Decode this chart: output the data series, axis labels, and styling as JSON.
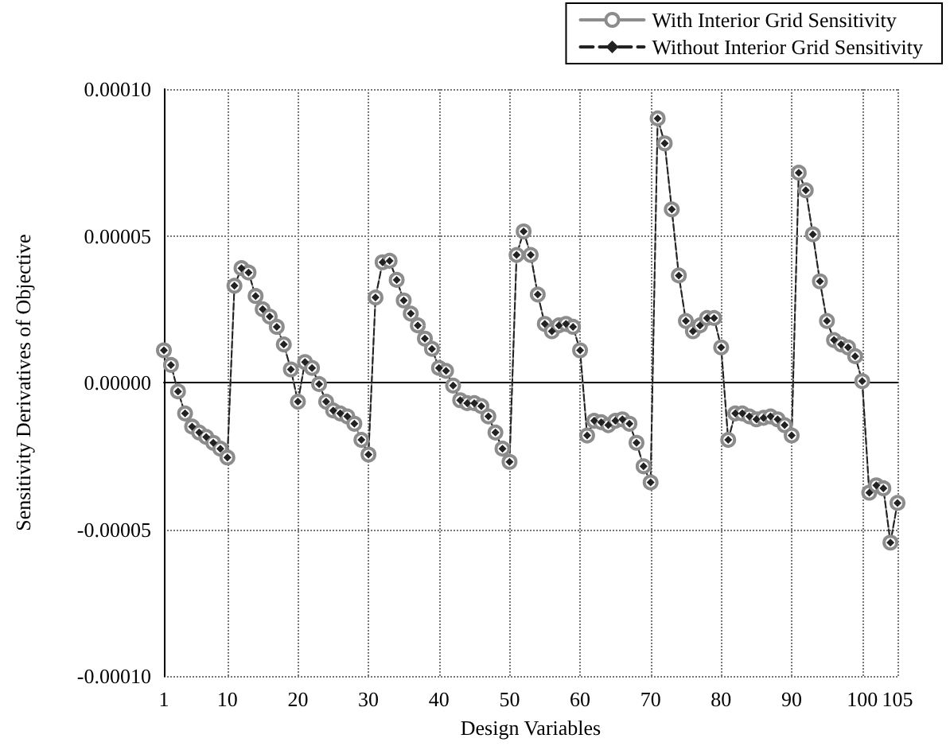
{
  "chart_data": {
    "type": "line",
    "xlabel": "Design Variables",
    "ylabel": "Sensitivity Derivatives of Objective",
    "x": [
      1,
      2,
      3,
      4,
      5,
      6,
      7,
      8,
      9,
      10,
      11,
      12,
      13,
      14,
      15,
      16,
      17,
      18,
      19,
      20,
      21,
      22,
      23,
      24,
      25,
      26,
      27,
      28,
      29,
      30,
      31,
      32,
      33,
      34,
      35,
      36,
      37,
      38,
      39,
      40,
      41,
      42,
      43,
      44,
      45,
      46,
      47,
      48,
      49,
      50,
      51,
      52,
      53,
      54,
      55,
      56,
      57,
      58,
      59,
      60,
      61,
      62,
      63,
      64,
      65,
      66,
      67,
      68,
      69,
      70,
      71,
      72,
      73,
      74,
      75,
      76,
      77,
      78,
      79,
      80,
      81,
      82,
      83,
      84,
      85,
      86,
      87,
      88,
      89,
      90,
      91,
      92,
      93,
      94,
      95,
      96,
      97,
      98,
      99,
      100,
      101,
      102,
      103,
      104,
      105
    ],
    "series": [
      {
        "name": "With Interior Grid Sensitivity",
        "color": "#8c8c8c",
        "marker": "circle",
        "line_style": "solid",
        "values": [
          1.1e-05,
          6e-06,
          -3e-06,
          -1.05e-05,
          -1.5e-05,
          -1.7e-05,
          -1.85e-05,
          -2.05e-05,
          -2.25e-05,
          -2.55e-05,
          3.3e-05,
          3.9e-05,
          3.75e-05,
          2.95e-05,
          2.5e-05,
          2.25e-05,
          1.9e-05,
          1.3e-05,
          4.5e-06,
          -6.5e-06,
          7e-06,
          5e-06,
          -5e-07,
          -6.5e-06,
          -9.5e-06,
          -1.05e-05,
          -1.15e-05,
          -1.4e-05,
          -1.95e-05,
          -2.45e-05,
          2.9e-05,
          4.1e-05,
          4.15e-05,
          3.5e-05,
          2.8e-05,
          2.35e-05,
          1.95e-05,
          1.5e-05,
          1.15e-05,
          5e-06,
          4e-06,
          -1e-06,
          -6e-06,
          -7e-06,
          -7e-06,
          -8e-06,
          -1.15e-05,
          -1.7e-05,
          -2.25e-05,
          -2.7e-05,
          4.35e-05,
          5.15e-05,
          4.35e-05,
          3e-05,
          2e-05,
          1.75e-05,
          1.95e-05,
          2e-05,
          1.9e-05,
          1.1e-05,
          -1.8e-05,
          -1.3e-05,
          -1.35e-05,
          -1.45e-05,
          -1.3e-05,
          -1.25e-05,
          -1.4e-05,
          -2.05e-05,
          -2.85e-05,
          -3.4e-05,
          9e-05,
          8.15e-05,
          5.9e-05,
          3.65e-05,
          2.1e-05,
          1.75e-05,
          1.95e-05,
          2.2e-05,
          2.2e-05,
          1.2e-05,
          -1.95e-05,
          -1.05e-05,
          -1.05e-05,
          -1.15e-05,
          -1.25e-05,
          -1.2e-05,
          -1.15e-05,
          -1.25e-05,
          -1.45e-05,
          -1.8e-05,
          7.15e-05,
          6.55e-05,
          5.05e-05,
          3.45e-05,
          2.1e-05,
          1.45e-05,
          1.3e-05,
          1.2e-05,
          9e-06,
          5e-07,
          -3.75e-05,
          -3.5e-05,
          -3.6e-05,
          -5.45e-05,
          -4.1e-05
        ]
      },
      {
        "name": "Without Interior Grid Sensitivity",
        "color": "#222222",
        "marker": "diamond",
        "line_style": "dashed",
        "values": [
          1.1e-05,
          6e-06,
          -3e-06,
          -1.05e-05,
          -1.5e-05,
          -1.7e-05,
          -1.85e-05,
          -2.05e-05,
          -2.25e-05,
          -2.55e-05,
          3.3e-05,
          3.9e-05,
          3.75e-05,
          2.95e-05,
          2.5e-05,
          2.25e-05,
          1.9e-05,
          1.3e-05,
          4.5e-06,
          -6.5e-06,
          7e-06,
          5e-06,
          -5e-07,
          -6.5e-06,
          -9.5e-06,
          -1.05e-05,
          -1.15e-05,
          -1.4e-05,
          -1.95e-05,
          -2.45e-05,
          2.9e-05,
          4.1e-05,
          4.15e-05,
          3.5e-05,
          2.8e-05,
          2.35e-05,
          1.95e-05,
          1.5e-05,
          1.15e-05,
          5e-06,
          4e-06,
          -1e-06,
          -6e-06,
          -7e-06,
          -7e-06,
          -8e-06,
          -1.15e-05,
          -1.7e-05,
          -2.25e-05,
          -2.7e-05,
          4.35e-05,
          5.15e-05,
          4.35e-05,
          3e-05,
          2e-05,
          1.75e-05,
          1.95e-05,
          2e-05,
          1.9e-05,
          1.1e-05,
          -1.8e-05,
          -1.3e-05,
          -1.35e-05,
          -1.45e-05,
          -1.3e-05,
          -1.25e-05,
          -1.4e-05,
          -2.05e-05,
          -2.85e-05,
          -3.4e-05,
          9e-05,
          8.15e-05,
          5.9e-05,
          3.65e-05,
          2.1e-05,
          1.75e-05,
          1.95e-05,
          2.2e-05,
          2.2e-05,
          1.2e-05,
          -1.95e-05,
          -1.05e-05,
          -1.05e-05,
          -1.15e-05,
          -1.25e-05,
          -1.2e-05,
          -1.15e-05,
          -1.25e-05,
          -1.45e-05,
          -1.8e-05,
          7.15e-05,
          6.55e-05,
          5.05e-05,
          3.45e-05,
          2.1e-05,
          1.45e-05,
          1.3e-05,
          1.2e-05,
          9e-06,
          5e-07,
          -3.75e-05,
          -3.5e-05,
          -3.6e-05,
          -5.45e-05,
          -4.1e-05
        ]
      }
    ],
    "xlim": [
      1,
      105
    ],
    "xticks": [
      1,
      10,
      20,
      30,
      40,
      50,
      60,
      70,
      80,
      90,
      100,
      105
    ],
    "ylim": [
      -0.0001,
      0.0001
    ],
    "yticks": [
      {
        "value": -0.0001,
        "label": "-0.00010"
      },
      {
        "value": -5e-05,
        "label": "-0.00005"
      },
      {
        "value": 0,
        "label": "0.00000"
      },
      {
        "value": 5e-05,
        "label": "0.00005"
      },
      {
        "value": 0.0001,
        "label": "0.00010"
      }
    ],
    "grid": true,
    "legend": "top right"
  }
}
